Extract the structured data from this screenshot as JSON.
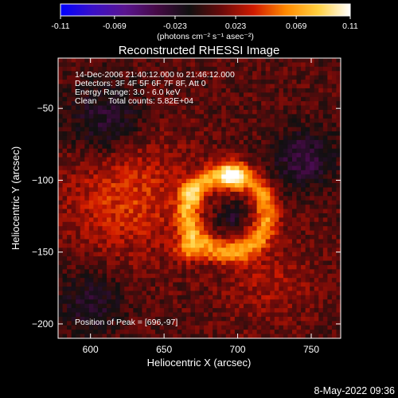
{
  "colorbar": {
    "ticks": [
      "-0.11",
      "-0.069",
      "-0.023",
      "0.023",
      "0.069",
      "0.11"
    ],
    "tick_values": [
      -0.11,
      -0.069,
      -0.023,
      0.023,
      0.069,
      0.11
    ],
    "range": [
      -0.11,
      0.11
    ],
    "unit_label": "(photons cm⁻² s⁻¹ asec⁻²)",
    "colors": [
      "#0000ff",
      "#3a10c8",
      "#5a1590",
      "#450a45",
      "#101010",
      "#6a0a0a",
      "#d01a00",
      "#ff8a00",
      "#ffd040",
      "#ffffff"
    ]
  },
  "chart_data": {
    "type": "heatmap",
    "title": "Reconstructed RHESSI Image",
    "xlabel": "Heliocentric X (arcsec)",
    "ylabel": "Heliocentric Y (arcsec)",
    "xlim": [
      578,
      770
    ],
    "ylim": [
      -210,
      -15
    ],
    "x_ticks": [
      600,
      650,
      700,
      750
    ],
    "y_ticks": [
      -50,
      -100,
      -150,
      -200
    ],
    "x_tick_labels": [
      "600",
      "650",
      "700",
      "750"
    ],
    "y_tick_labels": [
      "−50",
      "−100",
      "−150",
      "−200"
    ],
    "peak_position": [
      696,
      -97
    ],
    "total_counts": "5.82E+04",
    "value_range": [
      -0.11,
      0.11
    ],
    "info_lines": [
      "14-Dec-2006 21:40:12.000 to 21:46:12.000",
      "Detectors: 3F 4F 5F 6F 7F 8F, Att 0",
      "Energy Range: 3.0 - 6.0 keV",
      "Clean     Total counts: 5.82E+04"
    ],
    "peak_label": "Position of Peak = [696,-97]"
  },
  "footer": {
    "date": "8-May-2022 09:36"
  }
}
